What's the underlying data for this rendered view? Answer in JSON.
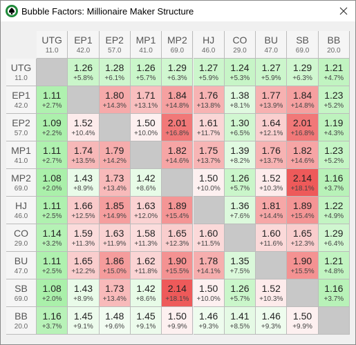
{
  "window": {
    "title": "Bubble Factors: Millionaire Maker Structure"
  },
  "positions": [
    {
      "name": "UTG",
      "stack": "11.0"
    },
    {
      "name": "EP1",
      "stack": "42.0"
    },
    {
      "name": "EP2",
      "stack": "57.0"
    },
    {
      "name": "MP1",
      "stack": "41.0"
    },
    {
      "name": "MP2",
      "stack": "69.0"
    },
    {
      "name": "HJ",
      "stack": "46.0"
    },
    {
      "name": "CO",
      "stack": "29.0"
    },
    {
      "name": "BU",
      "stack": "47.0"
    },
    {
      "name": "SB",
      "stack": "69.0"
    },
    {
      "name": "BB",
      "stack": "20.0"
    }
  ],
  "rows": [
    [
      null,
      [
        "1.26",
        "+5.8%"
      ],
      [
        "1.28",
        "+6.1%"
      ],
      [
        "1.26",
        "+5.7%"
      ],
      [
        "1.29",
        "+6.3%"
      ],
      [
        "1.27",
        "+5.9%"
      ],
      [
        "1.24",
        "+5.3%"
      ],
      [
        "1.27",
        "+5.9%"
      ],
      [
        "1.29",
        "+6.3%"
      ],
      [
        "1.21",
        "+4.7%"
      ]
    ],
    [
      [
        "1.11",
        "+2.7%"
      ],
      null,
      [
        "1.80",
        "+14.3%"
      ],
      [
        "1.71",
        "+13.1%"
      ],
      [
        "1.84",
        "+14.8%"
      ],
      [
        "1.76",
        "+13.8%"
      ],
      [
        "1.38",
        "+8.1%"
      ],
      [
        "1.77",
        "+13.9%"
      ],
      [
        "1.84",
        "+14.8%"
      ],
      [
        "1.23",
        "+5.2%"
      ]
    ],
    [
      [
        "1.09",
        "+2.2%"
      ],
      [
        "1.52",
        "+10.4%"
      ],
      null,
      [
        "1.50",
        "+10.0%"
      ],
      [
        "2.01",
        "+16.8%"
      ],
      [
        "1.61",
        "+11.7%"
      ],
      [
        "1.30",
        "+6.5%"
      ],
      [
        "1.64",
        "+12.1%"
      ],
      [
        "2.01",
        "+16.8%"
      ],
      [
        "1.19",
        "+4.3%"
      ]
    ],
    [
      [
        "1.11",
        "+2.7%"
      ],
      [
        "1.74",
        "+13.5%"
      ],
      [
        "1.79",
        "+14.2%"
      ],
      null,
      [
        "1.82",
        "+14.6%"
      ],
      [
        "1.75",
        "+13.7%"
      ],
      [
        "1.39",
        "+8.2%"
      ],
      [
        "1.76",
        "+13.7%"
      ],
      [
        "1.82",
        "+14.6%"
      ],
      [
        "1.23",
        "+5.2%"
      ]
    ],
    [
      [
        "1.08",
        "+2.0%"
      ],
      [
        "1.43",
        "+8.9%"
      ],
      [
        "1.73",
        "+13.4%"
      ],
      [
        "1.42",
        "+8.6%"
      ],
      null,
      [
        "1.50",
        "+10.0%"
      ],
      [
        "1.26",
        "+5.7%"
      ],
      [
        "1.52",
        "+10.3%"
      ],
      [
        "2.14",
        "+18.1%"
      ],
      [
        "1.16",
        "+3.7%"
      ]
    ],
    [
      [
        "1.11",
        "+2.5%"
      ],
      [
        "1.66",
        "+12.5%"
      ],
      [
        "1.85",
        "+14.9%"
      ],
      [
        "1.63",
        "+12.0%"
      ],
      [
        "1.89",
        "+15.4%"
      ],
      null,
      [
        "1.36",
        "+7.6%"
      ],
      [
        "1.81",
        "+14.4%"
      ],
      [
        "1.89",
        "+15.4%"
      ],
      [
        "1.22",
        "+4.9%"
      ]
    ],
    [
      [
        "1.14",
        "+3.2%"
      ],
      [
        "1.59",
        "+11.3%"
      ],
      [
        "1.63",
        "+11.9%"
      ],
      [
        "1.58",
        "+11.3%"
      ],
      [
        "1.65",
        "+12.3%"
      ],
      [
        "1.60",
        "+11.5%"
      ],
      null,
      [
        "1.60",
        "+11.6%"
      ],
      [
        "1.65",
        "+12.3%"
      ],
      [
        "1.29",
        "+6.4%"
      ]
    ],
    [
      [
        "1.11",
        "+2.5%"
      ],
      [
        "1.65",
        "+12.2%"
      ],
      [
        "1.86",
        "+15.0%"
      ],
      [
        "1.62",
        "+11.8%"
      ],
      [
        "1.90",
        "+15.5%"
      ],
      [
        "1.78",
        "+14.1%"
      ],
      [
        "1.35",
        "+7.5%"
      ],
      null,
      [
        "1.90",
        "+15.5%"
      ],
      [
        "1.21",
        "+4.8%"
      ]
    ],
    [
      [
        "1.08",
        "+2.0%"
      ],
      [
        "1.43",
        "+8.9%"
      ],
      [
        "1.73",
        "+13.4%"
      ],
      [
        "1.42",
        "+8.6%"
      ],
      [
        "2.14",
        "+18.1%"
      ],
      [
        "1.50",
        "+10.0%"
      ],
      [
        "1.26",
        "+5.7%"
      ],
      [
        "1.52",
        "+10.3%"
      ],
      null,
      [
        "1.16",
        "+3.7%"
      ]
    ],
    [
      [
        "1.16",
        "+3.7%"
      ],
      [
        "1.45",
        "+9.1%"
      ],
      [
        "1.48",
        "+9.6%"
      ],
      [
        "1.45",
        "+9.1%"
      ],
      [
        "1.50",
        "+9.9%"
      ],
      [
        "1.46",
        "+9.3%"
      ],
      [
        "1.41",
        "+8.5%"
      ],
      [
        "1.46",
        "+9.3%"
      ],
      [
        "1.50",
        "+9.9%"
      ],
      null
    ]
  ]
}
